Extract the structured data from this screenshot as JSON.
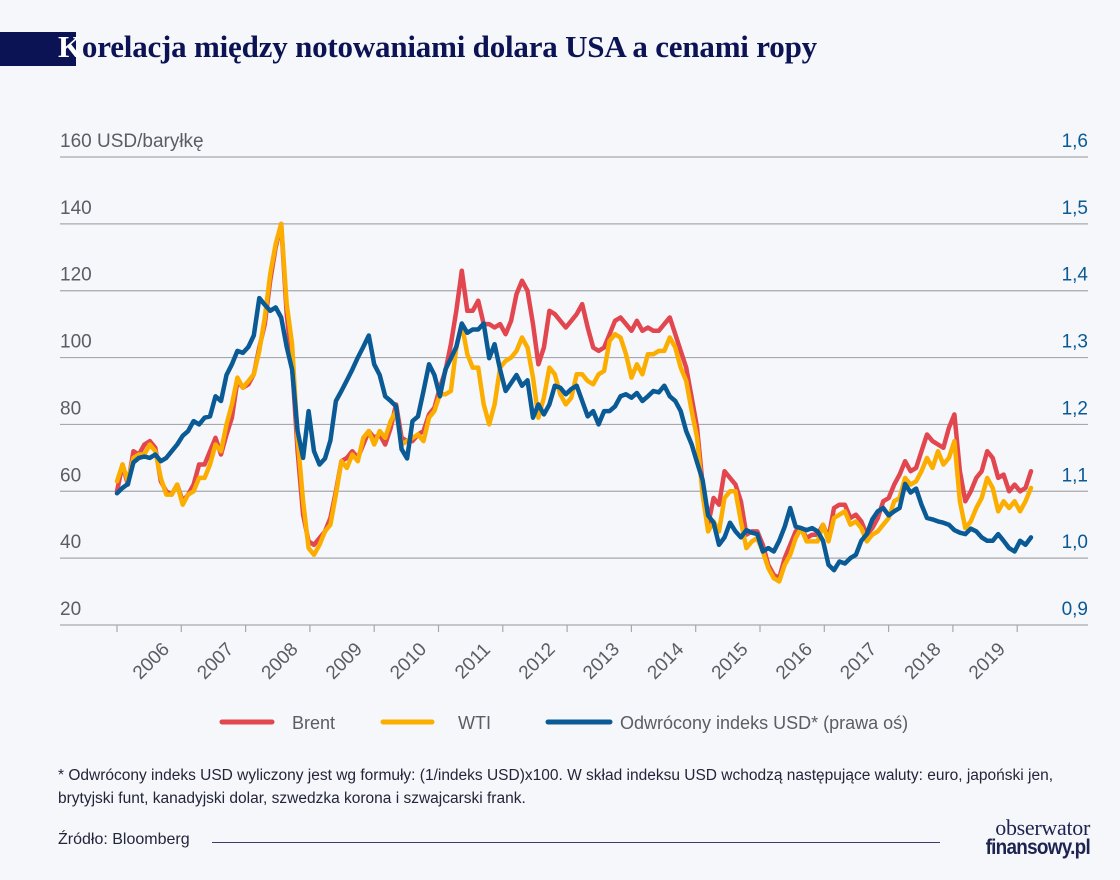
{
  "title": "Korelacja między notowaniami dolara USA a cenami ropy",
  "footnote": "* Odwrócony indeks USD wyliczony jest wg formuły: (1/indeks USD)x100. W skład indeksu USD wchodzą następujące waluty: euro, japoński jen, brytyjski funt, kanadyjski dolar, szwedzka korona i szwajcarski frank.",
  "source": "Źródło: Bloomberg",
  "logo": {
    "line1": "obserwator",
    "line2": "finansowy.pl"
  },
  "colors": {
    "brent": "#e2474f",
    "wti": "#fcae00",
    "usd": "#0a5a96",
    "title": "#0b1354",
    "grid": "#a6a8ad"
  },
  "chart_data": {
    "type": "line",
    "title": "Korelacja między notowaniami dolara USA a cenami ropy",
    "ylabel_left": "160 USD/baryłkę",
    "yticks_left": [
      "20",
      "40",
      "60",
      "80",
      "100",
      "120",
      "140"
    ],
    "yticks_right": [
      "0,9",
      "1,0",
      "1,1",
      "1,2",
      "1,3",
      "1,4",
      "1,5",
      "1,6"
    ],
    "ylim_left": [
      20,
      160
    ],
    "ylim_right": [
      0.9,
      1.6
    ],
    "xticks": [
      "2006",
      "2007",
      "2008",
      "2009",
      "2010",
      "2011",
      "2012",
      "2013",
      "2014",
      "2015",
      "2016",
      "2017",
      "2018",
      "2019"
    ],
    "grid": true,
    "legend_placement": "bottom",
    "x": [
      "2006-01",
      "2006-02",
      "2006-03",
      "2006-04",
      "2006-05",
      "2006-06",
      "2006-07",
      "2006-08",
      "2006-09",
      "2006-10",
      "2006-11",
      "2006-12",
      "2007-01",
      "2007-02",
      "2007-03",
      "2007-04",
      "2007-05",
      "2007-06",
      "2007-07",
      "2007-08",
      "2007-09",
      "2007-10",
      "2007-11",
      "2007-12",
      "2008-01",
      "2008-02",
      "2008-03",
      "2008-04",
      "2008-05",
      "2008-06",
      "2008-07",
      "2008-08",
      "2008-09",
      "2008-10",
      "2008-11",
      "2008-12",
      "2009-01",
      "2009-02",
      "2009-03",
      "2009-04",
      "2009-05",
      "2009-06",
      "2009-07",
      "2009-08",
      "2009-09",
      "2009-10",
      "2009-11",
      "2009-12",
      "2010-01",
      "2010-02",
      "2010-03",
      "2010-04",
      "2010-05",
      "2010-06",
      "2010-07",
      "2010-08",
      "2010-09",
      "2010-10",
      "2010-11",
      "2010-12",
      "2011-01",
      "2011-02",
      "2011-03",
      "2011-04",
      "2011-05",
      "2011-06",
      "2011-07",
      "2011-08",
      "2011-09",
      "2011-10",
      "2011-11",
      "2011-12",
      "2012-01",
      "2012-02",
      "2012-03",
      "2012-04",
      "2012-05",
      "2012-06",
      "2012-07",
      "2012-08",
      "2012-09",
      "2012-10",
      "2012-11",
      "2012-12",
      "2013-01",
      "2013-02",
      "2013-03",
      "2013-04",
      "2013-05",
      "2013-06",
      "2013-07",
      "2013-08",
      "2013-09",
      "2013-10",
      "2013-11",
      "2013-12",
      "2014-01",
      "2014-02",
      "2014-03",
      "2014-04",
      "2014-05",
      "2014-06",
      "2014-07",
      "2014-08",
      "2014-09",
      "2014-10",
      "2014-11",
      "2014-12",
      "2015-01",
      "2015-02",
      "2015-03",
      "2015-04",
      "2015-05",
      "2015-06",
      "2015-07",
      "2015-08",
      "2015-09",
      "2015-10",
      "2015-11",
      "2015-12",
      "2016-01",
      "2016-02",
      "2016-03",
      "2016-04",
      "2016-05",
      "2016-06",
      "2016-07",
      "2016-08",
      "2016-09",
      "2016-10",
      "2016-11",
      "2016-12",
      "2017-01",
      "2017-02",
      "2017-03",
      "2017-04",
      "2017-05",
      "2017-06",
      "2017-07",
      "2017-08",
      "2017-09",
      "2017-10",
      "2017-11",
      "2017-12",
      "2018-01",
      "2018-02",
      "2018-03",
      "2018-04",
      "2018-05",
      "2018-06",
      "2018-07",
      "2018-08",
      "2018-09",
      "2018-10",
      "2018-11",
      "2018-12",
      "2019-01",
      "2019-02",
      "2019-03",
      "2019-04",
      "2019-05",
      "2019-06",
      "2019-07",
      "2019-08",
      "2019-09",
      "2019-10",
      "2019-11",
      "2019-12"
    ],
    "series": [
      {
        "name": "Brent",
        "axis": "left",
        "color": "#e2474f",
        "values": [
          60,
          68,
          62,
          72,
          71,
          74,
          75,
          73,
          63,
          60,
          59,
          62,
          57,
          59,
          62,
          68,
          68,
          72,
          76,
          71,
          77,
          82,
          93,
          91,
          92,
          95,
          103,
          110,
          123,
          133,
          140,
          113,
          98,
          72,
          53,
          45,
          44,
          46,
          48,
          52,
          60,
          69,
          70,
          72,
          70,
          74,
          78,
          76,
          77,
          74,
          79,
          86,
          76,
          75,
          75,
          77,
          78,
          83,
          85,
          91,
          96,
          104,
          114,
          126,
          114,
          114,
          117,
          110,
          110,
          109,
          110,
          107,
          111,
          119,
          123,
          120,
          110,
          98,
          103,
          114,
          113,
          111,
          109,
          111,
          113,
          116,
          109,
          103,
          102,
          103,
          107,
          111,
          112,
          110,
          108,
          111,
          108,
          109,
          108,
          108,
          110,
          112,
          107,
          102,
          97,
          88,
          79,
          62,
          50,
          58,
          56,
          66,
          64,
          62,
          57,
          47,
          48,
          48,
          44,
          38,
          35,
          34,
          40,
          44,
          48,
          49,
          46,
          47,
          47,
          50,
          46,
          55,
          56,
          56,
          52,
          53,
          51,
          47,
          49,
          52,
          57,
          58,
          62,
          65,
          69,
          66,
          67,
          72,
          77,
          75,
          74,
          73,
          79,
          83,
          66,
          57,
          60,
          64,
          66,
          72,
          70,
          64,
          65,
          60,
          62,
          60,
          61,
          66
        ]
      },
      {
        "name": "WTI",
        "axis": "left",
        "color": "#fcae00",
        "values": [
          63,
          68,
          63,
          70,
          71,
          71,
          74,
          72,
          64,
          59,
          59,
          62,
          56,
          59,
          60,
          64,
          64,
          68,
          74,
          72,
          80,
          86,
          94,
          91,
          93,
          95,
          102,
          112,
          125,
          134,
          140,
          116,
          104,
          76,
          57,
          43,
          41,
          44,
          48,
          50,
          59,
          69,
          67,
          71,
          69,
          76,
          78,
          74,
          78,
          76,
          81,
          84,
          74,
          75,
          76,
          77,
          75,
          82,
          84,
          89,
          89,
          90,
          103,
          110,
          101,
          97,
          97,
          86,
          80,
          86,
          97,
          99,
          100,
          102,
          106,
          103,
          94,
          82,
          88,
          97,
          95,
          89,
          86,
          88,
          95,
          95,
          93,
          92,
          95,
          96,
          105,
          107,
          106,
          101,
          94,
          98,
          95,
          101,
          101,
          102,
          102,
          106,
          103,
          97,
          93,
          84,
          76,
          59,
          48,
          51,
          48,
          58,
          60,
          60,
          51,
          43,
          45,
          46,
          42,
          37,
          34,
          33,
          38,
          41,
          46,
          49,
          45,
          45,
          45,
          50,
          45,
          52,
          53,
          54,
          50,
          51,
          49,
          45,
          47,
          48,
          50,
          52,
          57,
          58,
          64,
          62,
          63,
          66,
          70,
          67,
          72,
          68,
          70,
          75,
          57,
          49,
          51,
          55,
          58,
          64,
          61,
          54,
          57,
          55,
          57,
          54,
          57,
          61
        ]
      },
      {
        "name": "Odwrócony indeks USD* (prawa oś)",
        "axis": "right",
        "color": "#0a5a96",
        "values": [
          1.097,
          1.105,
          1.111,
          1.143,
          1.15,
          1.152,
          1.15,
          1.155,
          1.145,
          1.15,
          1.16,
          1.17,
          1.183,
          1.19,
          1.205,
          1.2,
          1.21,
          1.212,
          1.242,
          1.235,
          1.274,
          1.29,
          1.31,
          1.307,
          1.316,
          1.333,
          1.389,
          1.379,
          1.37,
          1.375,
          1.36,
          1.316,
          1.282,
          1.19,
          1.15,
          1.22,
          1.16,
          1.14,
          1.149,
          1.176,
          1.235,
          1.25,
          1.266,
          1.282,
          1.3,
          1.316,
          1.333,
          1.29,
          1.274,
          1.242,
          1.235,
          1.227,
          1.163,
          1.149,
          1.205,
          1.212,
          1.25,
          1.29,
          1.274,
          1.242,
          1.282,
          1.299,
          1.316,
          1.351,
          1.337,
          1.342,
          1.342,
          1.351,
          1.299,
          1.32,
          1.282,
          1.25,
          1.262,
          1.274,
          1.258,
          1.266,
          1.21,
          1.23,
          1.215,
          1.23,
          1.258,
          1.255,
          1.245,
          1.253,
          1.258,
          1.235,
          1.212,
          1.22,
          1.2,
          1.22,
          1.22,
          1.227,
          1.242,
          1.245,
          1.24,
          1.247,
          1.235,
          1.242,
          1.25,
          1.248,
          1.258,
          1.242,
          1.235,
          1.22,
          1.19,
          1.17,
          1.143,
          1.117,
          1.064,
          1.053,
          1.02,
          1.031,
          1.053,
          1.04,
          1.031,
          1.042,
          1.038,
          1.036,
          1.01,
          1.015,
          1.01,
          1.026,
          1.047,
          1.075,
          1.047,
          1.045,
          1.042,
          1.045,
          1.04,
          1.026,
          0.99,
          0.982,
          0.995,
          0.992,
          1.0,
          1.005,
          1.026,
          1.036,
          1.058,
          1.07,
          1.075,
          1.064,
          1.07,
          1.075,
          1.111,
          1.098,
          1.104,
          1.08,
          1.06,
          1.058,
          1.055,
          1.053,
          1.05,
          1.042,
          1.038,
          1.036,
          1.044,
          1.04,
          1.031,
          1.026,
          1.026,
          1.036,
          1.026,
          1.015,
          1.01,
          1.026,
          1.02,
          1.031
        ]
      }
    ]
  }
}
